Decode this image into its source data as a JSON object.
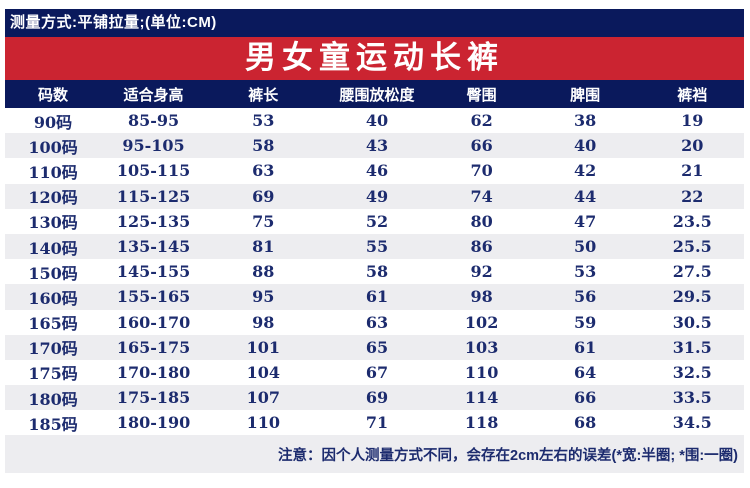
{
  "topbar": {
    "text": "测量方式:平铺拉量;(单位:CM)"
  },
  "banner": {
    "title": "男女童运动长裤"
  },
  "colors": {
    "navy": "#0a195c",
    "red": "#cb2431",
    "cell_text": "#1c2b6e",
    "alt_row": "#ededf0"
  },
  "chart_data": {
    "type": "table",
    "title": "男女童运动长裤",
    "unit": "CM",
    "headers": [
      "码数",
      "适合身高",
      "裤长",
      "腰围放松度",
      "臀围",
      "脾围",
      "裤裆"
    ],
    "rows": [
      [
        "90码",
        "85-95",
        "53",
        "40",
        "62",
        "38",
        "19"
      ],
      [
        "100码",
        "95-105",
        "58",
        "43",
        "66",
        "40",
        "20"
      ],
      [
        "110码",
        "105-115",
        "63",
        "46",
        "70",
        "42",
        "21"
      ],
      [
        "120码",
        "115-125",
        "69",
        "49",
        "74",
        "44",
        "22"
      ],
      [
        "130码",
        "125-135",
        "75",
        "52",
        "80",
        "47",
        "23.5"
      ],
      [
        "140码",
        "135-145",
        "81",
        "55",
        "86",
        "50",
        "25.5"
      ],
      [
        "150码",
        "145-155",
        "88",
        "58",
        "92",
        "53",
        "27.5"
      ],
      [
        "160码",
        "155-165",
        "95",
        "61",
        "98",
        "56",
        "29.5"
      ],
      [
        "165码",
        "160-170",
        "98",
        "63",
        "102",
        "59",
        "30.5"
      ],
      [
        "170码",
        "165-175",
        "101",
        "65",
        "103",
        "61",
        "31.5"
      ],
      [
        "175码",
        "170-180",
        "104",
        "67",
        "110",
        "64",
        "32.5"
      ],
      [
        "180码",
        "175-185",
        "107",
        "69",
        "114",
        "66",
        "33.5"
      ],
      [
        "185码",
        "180-190",
        "110",
        "71",
        "118",
        "68",
        "34.5"
      ]
    ]
  },
  "note": {
    "text": "注意：因个人测量方式不同，会存在2cm左右的误差(*宽:半圈; *围:一圈)"
  }
}
